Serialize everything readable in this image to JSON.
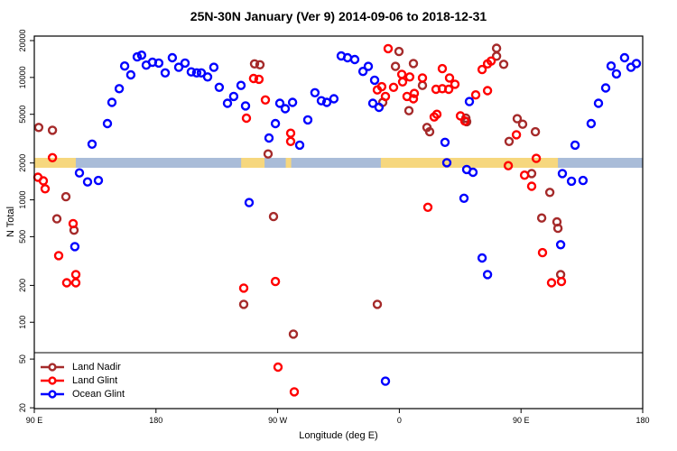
{
  "chart_data": {
    "type": "scatter",
    "title": "25N-30N January (Ver 9)   2014-09-06 to 2018-12-31",
    "xlabel": "Longitude (deg E)",
    "ylabel": "N Total",
    "y_scale": "log",
    "ylim": [
      20,
      20000
    ],
    "y_ticks": [
      20,
      50,
      100,
      200,
      500,
      1000,
      2000,
      5000,
      10000,
      20000
    ],
    "x_axis_span_deg": 450,
    "x_ticks": [
      {
        "pos": 0,
        "label": "90 E"
      },
      {
        "pos": 90,
        "label": "180"
      },
      {
        "pos": 180,
        "label": "90 W"
      },
      {
        "pos": 270,
        "label": "0"
      },
      {
        "pos": 360,
        "label": "90 E"
      },
      {
        "pos": 450,
        "label": "180"
      }
    ],
    "legend_position": "bottom-left",
    "grid": false,
    "band": {
      "y_value": 2000,
      "ocean_color": "#A9BCD8",
      "land_color": "#F6D77E",
      "land_segments_deg": [
        [
          0,
          30.7
        ],
        [
          153,
          170.3
        ],
        [
          186,
          190
        ],
        [
          256.3,
          387.3
        ]
      ]
    },
    "series": [
      {
        "name": "Land Nadir",
        "color": "#A52A2A",
        "points": [
          [
            3.3,
            3900
          ],
          [
            13.4,
            3700
          ],
          [
            16.7,
            700
          ],
          [
            23.4,
            1060
          ],
          [
            29.4,
            565
          ],
          [
            154.9,
            140
          ],
          [
            162.9,
            12900
          ],
          [
            166.9,
            12700
          ],
          [
            172.9,
            2370
          ],
          [
            176.9,
            730
          ],
          [
            191.6,
            80
          ],
          [
            253.7,
            140
          ],
          [
            257.7,
            6250
          ],
          [
            267.1,
            12300
          ],
          [
            269.7,
            16300
          ],
          [
            277.1,
            5350
          ],
          [
            280.4,
            13000
          ],
          [
            287.1,
            8600
          ],
          [
            290.4,
            3900
          ],
          [
            292.4,
            3600
          ],
          [
            319.2,
            4650
          ],
          [
            319.8,
            4350
          ],
          [
            341.9,
            17300
          ],
          [
            341.9,
            14900
          ],
          [
            347.2,
            12800
          ],
          [
            351.2,
            3000
          ],
          [
            357.2,
            4600
          ],
          [
            361.2,
            4150
          ],
          [
            370.6,
            3600
          ],
          [
            367.9,
            1640
          ],
          [
            375.3,
            710
          ],
          [
            381.3,
            1150
          ],
          [
            386.6,
            660
          ],
          [
            387.3,
            585
          ],
          [
            389.3,
            245
          ]
        ]
      },
      {
        "name": "Land Glint",
        "color": "#FF0000",
        "points": [
          [
            2.7,
            1530
          ],
          [
            6.7,
            1430
          ],
          [
            8.0,
            1230
          ],
          [
            13.4,
            2210
          ],
          [
            18.0,
            350
          ],
          [
            24.0,
            210
          ],
          [
            28.7,
            640
          ],
          [
            30.7,
            245
          ],
          [
            30.7,
            210
          ],
          [
            154.9,
            190
          ],
          [
            156.9,
            4650
          ],
          [
            162.2,
            9800
          ],
          [
            166.2,
            9650
          ],
          [
            170.9,
            6550
          ],
          [
            178.3,
            215
          ],
          [
            180.3,
            43
          ],
          [
            189.6,
            3500
          ],
          [
            189.6,
            3000
          ],
          [
            192.3,
            27
          ],
          [
            253.7,
            7900
          ],
          [
            257.0,
            8400
          ],
          [
            259.7,
            7000
          ],
          [
            261.7,
            17200
          ],
          [
            265.7,
            8300
          ],
          [
            271.8,
            10600
          ],
          [
            272.4,
            9200
          ],
          [
            275.7,
            7000
          ],
          [
            277.7,
            10100
          ],
          [
            280.4,
            6700
          ],
          [
            281.1,
            7400
          ],
          [
            287.1,
            9900
          ],
          [
            291.1,
            870
          ],
          [
            295.8,
            4750
          ],
          [
            297.1,
            8000
          ],
          [
            297.8,
            5000
          ],
          [
            301.8,
            11800
          ],
          [
            301.8,
            8100
          ],
          [
            306.5,
            8000
          ],
          [
            307.1,
            9900
          ],
          [
            311.1,
            8800
          ],
          [
            315.2,
            4850
          ],
          [
            318.5,
            4400
          ],
          [
            326.5,
            7200
          ],
          [
            331.2,
            11600
          ],
          [
            335.2,
            12900
          ],
          [
            335.2,
            7800
          ],
          [
            337.9,
            13600
          ],
          [
            350.6,
            1900
          ],
          [
            356.6,
            3400
          ],
          [
            362.6,
            1590
          ],
          [
            367.9,
            1290
          ],
          [
            371.3,
            2180
          ],
          [
            375.9,
            370
          ],
          [
            382.6,
            210
          ],
          [
            389.9,
            215
          ]
        ]
      },
      {
        "name": "Ocean Glint",
        "color": "#0000FF",
        "points": [
          [
            30.0,
            415
          ],
          [
            33.4,
            1660
          ],
          [
            39.4,
            1400
          ],
          [
            42.7,
            2850
          ],
          [
            47.4,
            1440
          ],
          [
            54.1,
            4200
          ],
          [
            57.4,
            6250
          ],
          [
            62.8,
            8100
          ],
          [
            66.8,
            12400
          ],
          [
            71.4,
            10500
          ],
          [
            76.1,
            14700
          ],
          [
            79.4,
            15200
          ],
          [
            82.8,
            12600
          ],
          [
            87.4,
            13300
          ],
          [
            92.1,
            13100
          ],
          [
            96.8,
            10900
          ],
          [
            102.1,
            14500
          ],
          [
            106.8,
            12100
          ],
          [
            111.5,
            13100
          ],
          [
            116.1,
            11100
          ],
          [
            120.1,
            10900
          ],
          [
            123.5,
            10900
          ],
          [
            128.2,
            10100
          ],
          [
            132.8,
            12100
          ],
          [
            136.8,
            8300
          ],
          [
            142.9,
            6150
          ],
          [
            147.5,
            7000
          ],
          [
            152.9,
            8600
          ],
          [
            156.2,
            5850
          ],
          [
            158.9,
            950
          ],
          [
            173.6,
            3200
          ],
          [
            178.3,
            4200
          ],
          [
            181.6,
            6150
          ],
          [
            185.6,
            5550
          ],
          [
            191.0,
            6250
          ],
          [
            196.3,
            2800
          ],
          [
            202.3,
            4500
          ],
          [
            207.6,
            7500
          ],
          [
            212.3,
            6450
          ],
          [
            216.3,
            6250
          ],
          [
            221.6,
            6700
          ],
          [
            227.0,
            15000
          ],
          [
            231.7,
            14500
          ],
          [
            237.0,
            14000
          ],
          [
            243.1,
            11200
          ],
          [
            247.0,
            12300
          ],
          [
            250.4,
            6150
          ],
          [
            251.7,
            9500
          ],
          [
            255.0,
            5700
          ],
          [
            259.7,
            33
          ],
          [
            303.8,
            2950
          ],
          [
            305.1,
            2010
          ],
          [
            317.8,
            1030
          ],
          [
            319.8,
            1770
          ],
          [
            321.8,
            6350
          ],
          [
            324.5,
            1680
          ],
          [
            331.2,
            335
          ],
          [
            335.2,
            245
          ],
          [
            389.3,
            430
          ],
          [
            390.6,
            1640
          ],
          [
            397.3,
            1420
          ],
          [
            400.0,
            2800
          ],
          [
            405.9,
            1440
          ],
          [
            411.9,
            4200
          ],
          [
            417.3,
            6150
          ],
          [
            422.6,
            8200
          ],
          [
            426.6,
            12400
          ],
          [
            430.6,
            10700
          ],
          [
            436.6,
            14500
          ],
          [
            441.3,
            12100
          ],
          [
            445.3,
            13000
          ]
        ]
      }
    ]
  }
}
